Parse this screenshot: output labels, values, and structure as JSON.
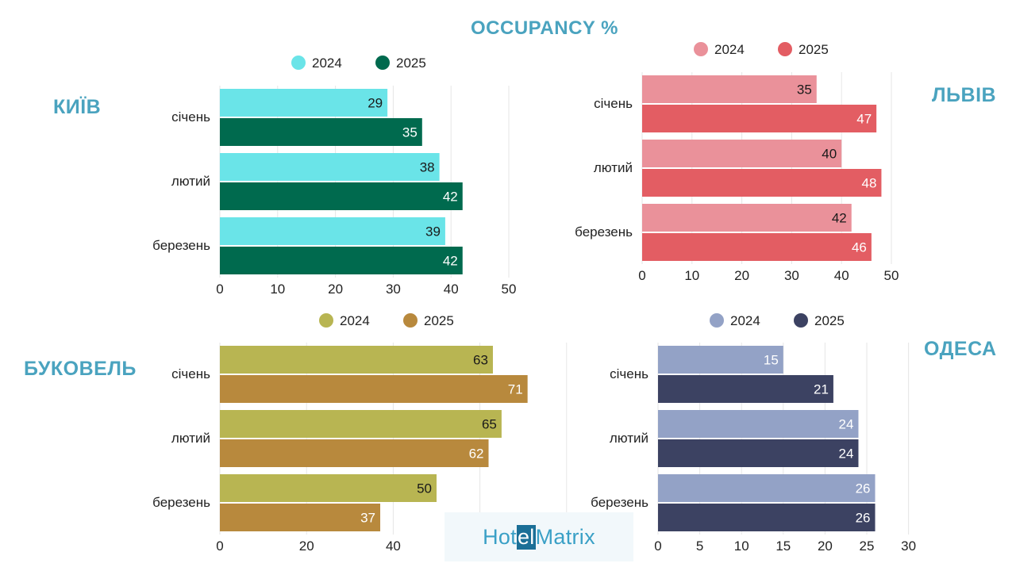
{
  "title": "OCCUPANCY %",
  "logo": {
    "part1": "Hotel",
    "part2": "Matrix"
  },
  "chart_data": [
    {
      "type": "bar",
      "orientation": "horizontal",
      "city": "КИЇВ",
      "categories": [
        "січень",
        "лютий",
        "березень"
      ],
      "series": [
        {
          "name": "2024",
          "values": [
            29,
            38,
            39
          ],
          "color": "#6ae4e8",
          "label_color": "#1a1a1a"
        },
        {
          "name": "2025",
          "values": [
            35,
            42,
            42
          ],
          "color": "#006a4e",
          "label_color": "#ffffff"
        }
      ],
      "xlim": [
        0,
        50
      ],
      "ticks": [
        0,
        10,
        20,
        30,
        40,
        50
      ]
    },
    {
      "type": "bar",
      "orientation": "horizontal",
      "city": "ЛЬВІВ",
      "categories": [
        "січень",
        "лютий",
        "березень"
      ],
      "series": [
        {
          "name": "2024",
          "values": [
            35,
            40,
            42
          ],
          "color": "#ea919a",
          "label_color": "#1a1a1a"
        },
        {
          "name": "2025",
          "values": [
            47,
            48,
            46
          ],
          "color": "#e35d63",
          "label_color": "#ffffff"
        }
      ],
      "xlim": [
        0,
        50
      ],
      "ticks": [
        0,
        10,
        20,
        30,
        40,
        50
      ]
    },
    {
      "type": "bar",
      "orientation": "horizontal",
      "city": "БУКОВЕЛЬ",
      "categories": [
        "січень",
        "лютий",
        "березень"
      ],
      "series": [
        {
          "name": "2024",
          "values": [
            63,
            65,
            50
          ],
          "color": "#b8b552",
          "label_color": "#1a1a1a"
        },
        {
          "name": "2025",
          "values": [
            71,
            62,
            37
          ],
          "color": "#b8893d",
          "label_color": "#ffffff"
        }
      ],
      "xlim": [
        0,
        80
      ],
      "ticks": [
        0,
        20,
        40
      ]
    },
    {
      "type": "bar",
      "orientation": "horizontal",
      "city": "ОДЕСА",
      "categories": [
        "січень",
        "лютий",
        "березень"
      ],
      "series": [
        {
          "name": "2024",
          "values": [
            15,
            24,
            26
          ],
          "color": "#93a2c6",
          "label_color": "#ffffff"
        },
        {
          "name": "2025",
          "values": [
            21,
            24,
            26
          ],
          "color": "#3c4262",
          "label_color": "#ffffff"
        }
      ],
      "xlim": [
        0,
        30
      ],
      "ticks": [
        0,
        5,
        10,
        15,
        20,
        25,
        30
      ]
    }
  ]
}
